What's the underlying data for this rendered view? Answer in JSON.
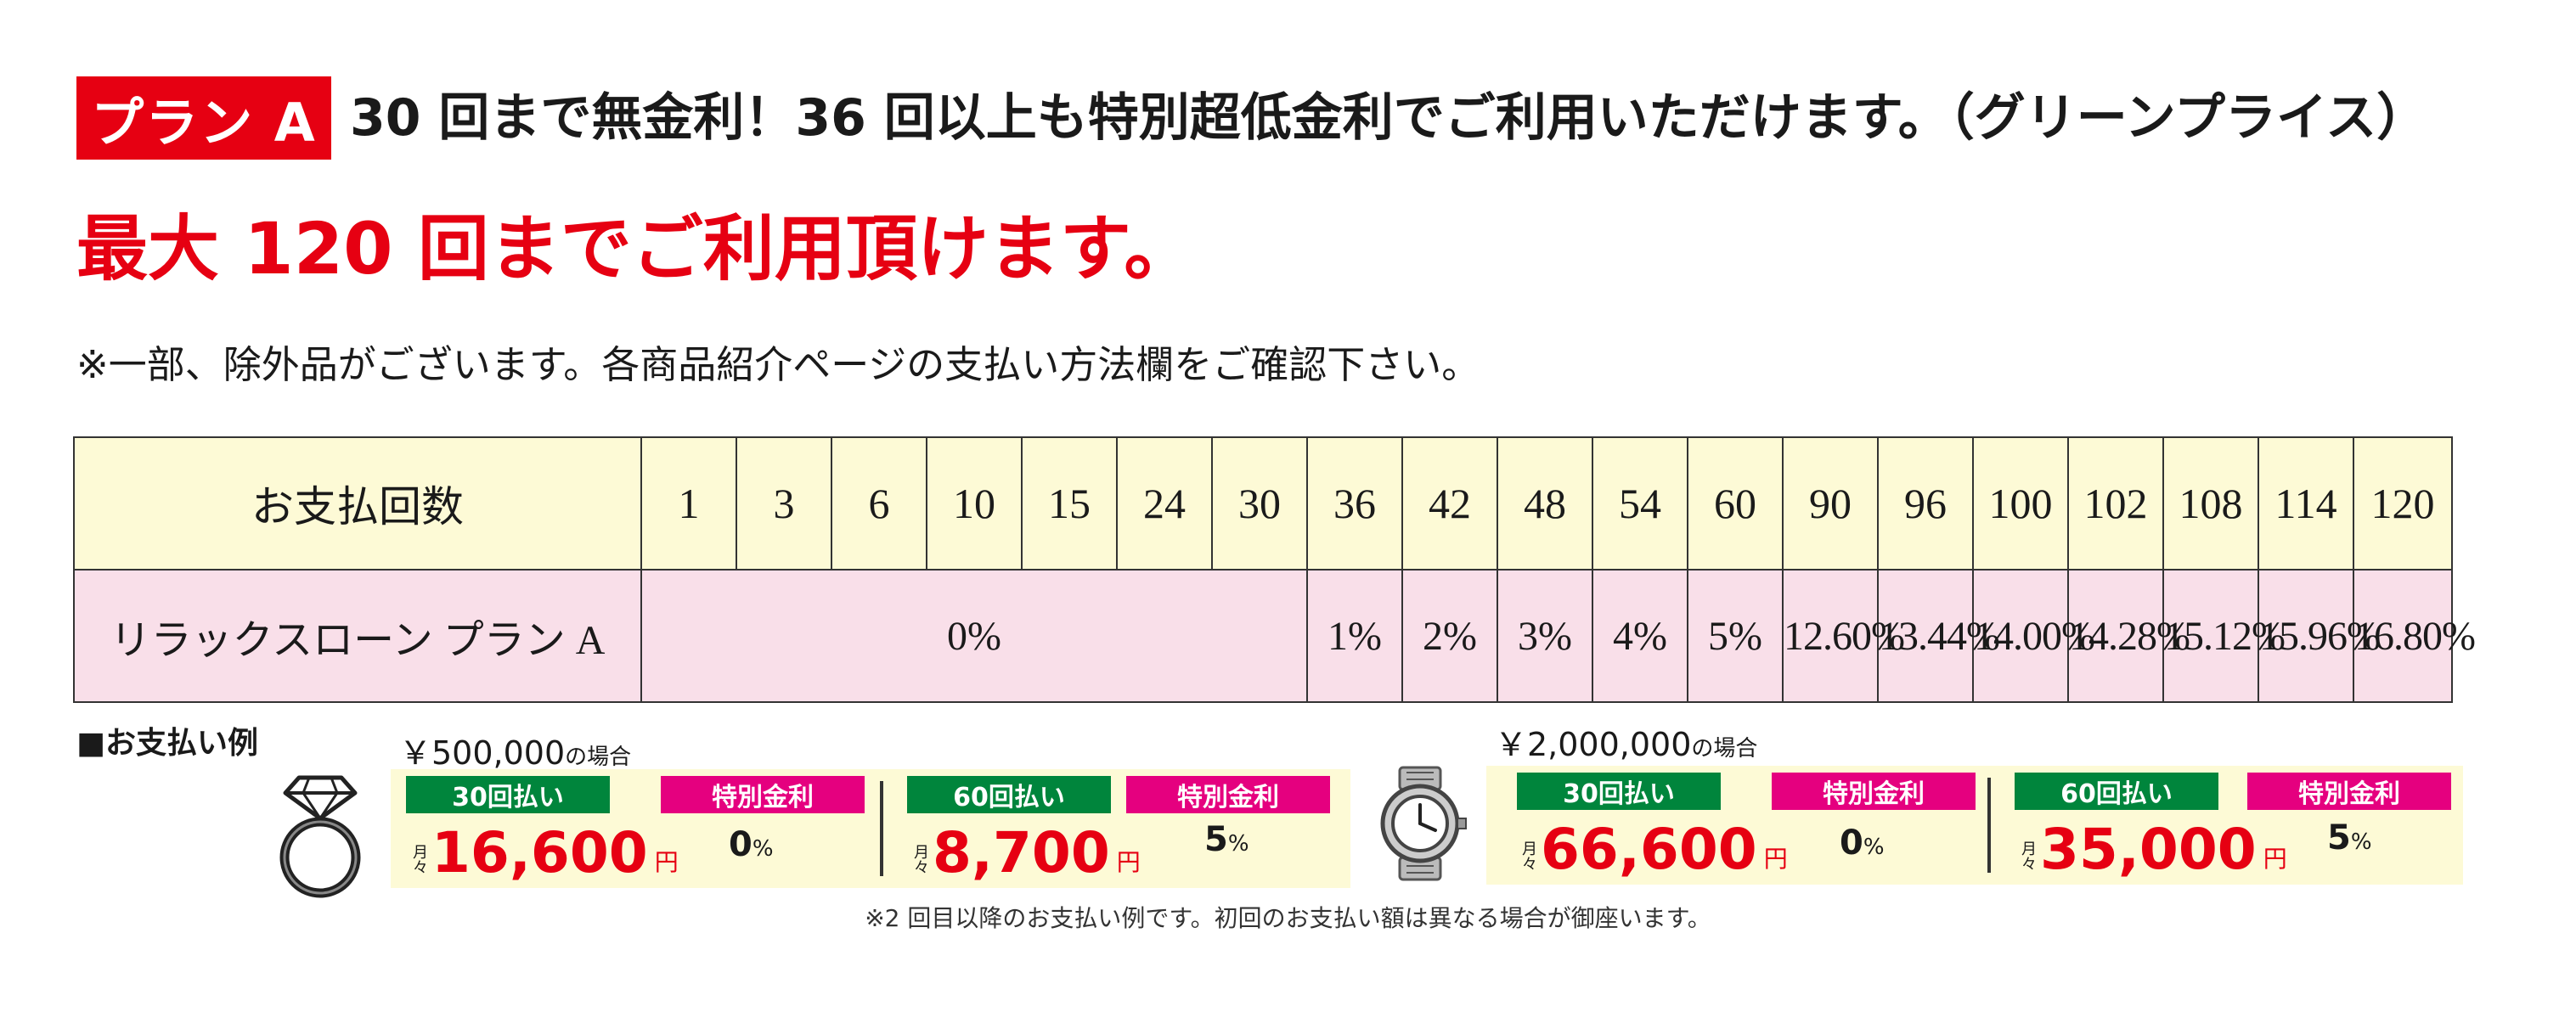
{
  "header": {
    "plan_badge": "プラン A",
    "headline": "30 回まで無金利！36 回以上も特別超低金利でご利用いただけます。（グリーンプライス）",
    "subheadline": "最大 120 回までご利用頂けます。",
    "note": "※一部、除外品がございます。各商品紹介ページの支払い方法欄をご確認下さい。"
  },
  "table": {
    "count_header": "お支払回数",
    "counts": [
      "1",
      "3",
      "6",
      "10",
      "15",
      "24",
      "30",
      "36",
      "42",
      "48",
      "54",
      "60",
      "90",
      "96",
      "100",
      "102",
      "108",
      "114",
      "120"
    ],
    "plan_name": "リラックスローン プラン A",
    "zero_rate": "0%",
    "rates": [
      "1%",
      "2%",
      "3%",
      "4%",
      "5%",
      "12.60%",
      "13.44%",
      "14.00%",
      "14.28%",
      "15.12%",
      "15.96%",
      "16.80%"
    ]
  },
  "examples": {
    "title": "■お支払い例",
    "case_suffix": "の場合",
    "cases": [
      {
        "icon": "ring-icon",
        "price": "￥500,000",
        "plans": [
          {
            "count_label": "30回払い",
            "rate_label": "特別金利",
            "monthly_prefix": "月々",
            "amount": "16,600",
            "yen": "円",
            "rate": "0",
            "pct": "%"
          },
          {
            "count_label": "60回払い",
            "rate_label": "特別金利",
            "monthly_prefix": "月々",
            "amount": "8,700",
            "yen": "円",
            "rate": "5",
            "pct": "%"
          }
        ]
      },
      {
        "icon": "watch-icon",
        "price": "￥2,000,000",
        "plans": [
          {
            "count_label": "30回払い",
            "rate_label": "特別金利",
            "monthly_prefix": "月々",
            "amount": "66,600",
            "yen": "円",
            "rate": "0",
            "pct": "%"
          },
          {
            "count_label": "60回払い",
            "rate_label": "特別金利",
            "monthly_prefix": "月々",
            "amount": "35,000",
            "yen": "円",
            "rate": "5",
            "pct": "%"
          }
        ]
      }
    ],
    "footnote": "※2 回目以降のお支払い例です。初回のお支払い額は異なる場合が御座います。"
  },
  "colors": {
    "accent_red": "#e60012",
    "green": "#00853c",
    "pink": "#e5007f",
    "cream": "#fdfad6",
    "light_pink": "#f9dfe9"
  }
}
